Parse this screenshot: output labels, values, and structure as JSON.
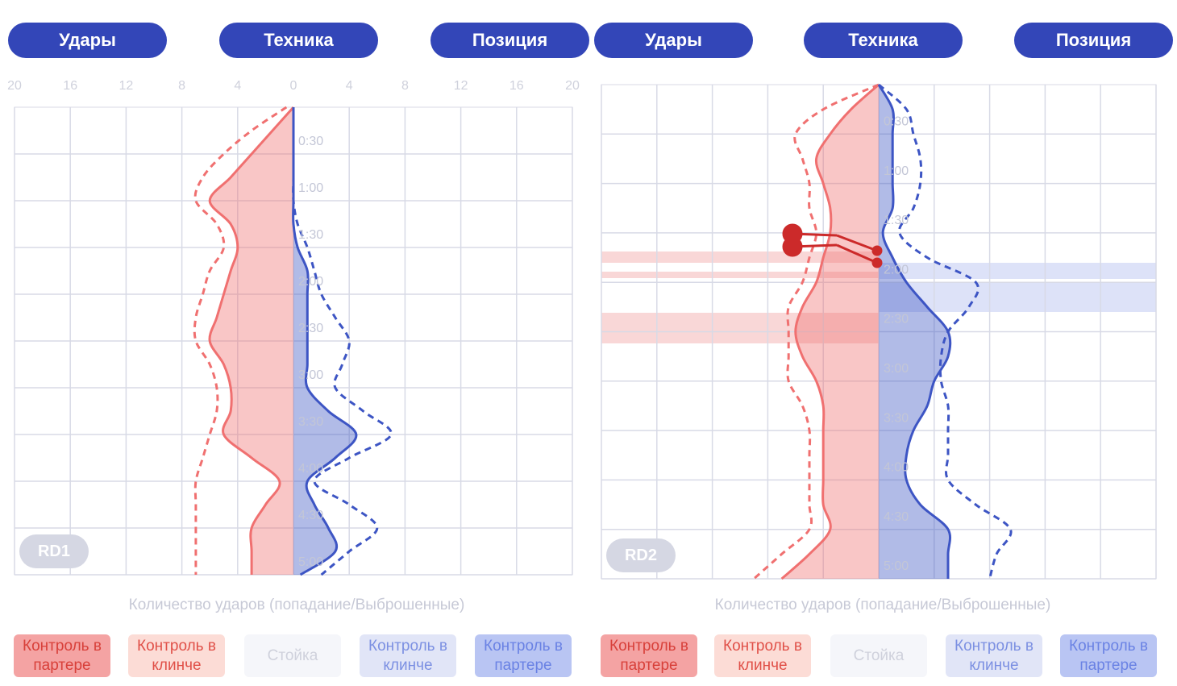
{
  "panels": [
    {
      "tabs": [
        "Удары",
        "Техника",
        "Позиция"
      ],
      "round": "RD1",
      "axis_label": "Количество ударов (попадание/Выброшенные)",
      "legend": [
        "Контроль в партере",
        "Контроль в клинче",
        "Стойка",
        "Контроль в клинче",
        "Контроль в партере"
      ]
    },
    {
      "tabs": [
        "Удары",
        "Техника",
        "Позиция"
      ],
      "round": "RD2",
      "axis_label": "Количество ударов (попадание/Выброшенные)",
      "legend": [
        "Контроль в партере",
        "Контроль в клинче",
        "Стойка",
        "Контроль в клинче",
        "Контроль в партере"
      ]
    }
  ],
  "chart_data": [
    {
      "type": "line",
      "xlim": [
        -20,
        20
      ],
      "show_tick_labels": true,
      "xticks": [
        {
          "value": -20,
          "label": "20"
        },
        {
          "value": -16,
          "label": "16"
        },
        {
          "value": -12,
          "label": "12"
        },
        {
          "value": -8,
          "label": "8"
        },
        {
          "value": -4,
          "label": "4"
        },
        0,
        4,
        8,
        12,
        16,
        20
      ],
      "ylim": [
        0,
        300
      ],
      "yticks": [
        {
          "value": 30,
          "label": "0:30"
        },
        {
          "value": 60,
          "label": "1:00"
        },
        {
          "value": 90,
          "label": "1:30"
        },
        {
          "value": 120,
          "label": "2:00"
        },
        {
          "value": 150,
          "label": "2:30"
        },
        {
          "value": 180,
          "label": "3:00"
        },
        {
          "value": 210,
          "label": "3:30"
        },
        {
          "value": 240,
          "label": "4:00"
        },
        {
          "value": 270,
          "label": "4:30"
        },
        {
          "value": 300,
          "label": "5:00"
        }
      ],
      "grid": true,
      "y": [
        0,
        15,
        30,
        45,
        60,
        75,
        90,
        105,
        120,
        135,
        150,
        165,
        180,
        195,
        210,
        225,
        240,
        255,
        270,
        285,
        300
      ],
      "series": [
        {
          "color": "#f07070",
          "dashed": false,
          "filled": true,
          "values": [
            0,
            -1.5,
            -3,
            -4.5,
            -6,
            -4.5,
            -4,
            -4.5,
            -5,
            -5.5,
            -6,
            -5,
            -4.5,
            -4.5,
            -5,
            -3,
            -1,
            -2,
            -3,
            -3,
            -3
          ]
        },
        {
          "color": "#f07070",
          "dashed": true,
          "filled": false,
          "values": [
            -0.5,
            -3,
            -5,
            -6.5,
            -7,
            -5.5,
            -5,
            -6,
            -6.5,
            -7,
            -7,
            -6,
            -5.5,
            -5.5,
            -6,
            -6.5,
            -7,
            -7,
            -7,
            -7,
            -7
          ]
        },
        {
          "color": "#3d55c4",
          "dashed": false,
          "filled": true,
          "values": [
            0,
            0,
            0,
            0,
            0,
            0,
            0.3,
            1,
            1,
            1,
            1,
            1,
            1,
            2.5,
            4.5,
            3,
            1,
            1.5,
            2.5,
            3,
            0.5
          ]
        },
        {
          "color": "#3d55c4",
          "dashed": true,
          "filled": false,
          "values": [
            0,
            0,
            0,
            0,
            0,
            0.3,
            1,
            1.5,
            2,
            3,
            4,
            3.5,
            3,
            5,
            7,
            4,
            1.5,
            4,
            6,
            4,
            2
          ]
        }
      ]
    },
    {
      "type": "line",
      "xlim": [
        -20,
        20
      ],
      "show_tick_labels": false,
      "xticks": [
        -20,
        -16,
        -12,
        -8,
        -4,
        0,
        4,
        8,
        12,
        16,
        20
      ],
      "ylim": [
        0,
        300
      ],
      "yticks": [
        {
          "value": 30,
          "label": "0:30"
        },
        {
          "value": 60,
          "label": "1:00"
        },
        {
          "value": 90,
          "label": "1:30"
        },
        {
          "value": 120,
          "label": "2:00"
        },
        {
          "value": 150,
          "label": "2:30"
        },
        {
          "value": 180,
          "label": "3:00"
        },
        {
          "value": 210,
          "label": "3:30"
        },
        {
          "value": 240,
          "label": "4:00"
        },
        {
          "value": 270,
          "label": "4:30"
        },
        {
          "value": 300,
          "label": "5:00"
        }
      ],
      "grid": true,
      "y": [
        0,
        15,
        30,
        45,
        60,
        75,
        90,
        105,
        120,
        135,
        150,
        165,
        180,
        195,
        210,
        225,
        240,
        255,
        270,
        285,
        300
      ],
      "series": [
        {
          "color": "#f07070",
          "dashed": false,
          "filled": true,
          "values": [
            0,
            -2,
            -3.5,
            -4.5,
            -4,
            -3.5,
            -3.5,
            -4,
            -4.5,
            -5.5,
            -6,
            -5.5,
            -4.5,
            -4,
            -4,
            -4,
            -4,
            -4,
            -3.5,
            -5,
            -7
          ]
        },
        {
          "color": "#f07070",
          "dashed": true,
          "filled": false,
          "values": [
            0,
            -4,
            -6,
            -5.5,
            -5,
            -5,
            -4.5,
            -5,
            -5.5,
            -6.5,
            -6.5,
            -6.5,
            -6.5,
            -5.5,
            -5,
            -5,
            -5,
            -5,
            -5,
            -7,
            -9
          ]
        },
        {
          "color": "#3d55c4",
          "dashed": false,
          "filled": true,
          "values": [
            0,
            1,
            1,
            1,
            1,
            1,
            0.3,
            1,
            2,
            3.5,
            5,
            5,
            4,
            3.5,
            2.5,
            2,
            2,
            3,
            5,
            5,
            5
          ]
        },
        {
          "color": "#3d55c4",
          "dashed": true,
          "filled": false,
          "values": [
            0,
            2,
            2.5,
            3,
            3,
            2.5,
            1.5,
            3.5,
            7,
            6.5,
            5,
            4.5,
            4.5,
            5,
            5,
            5,
            5,
            7,
            9.5,
            8.5,
            8
          ]
        }
      ]
    }
  ]
}
